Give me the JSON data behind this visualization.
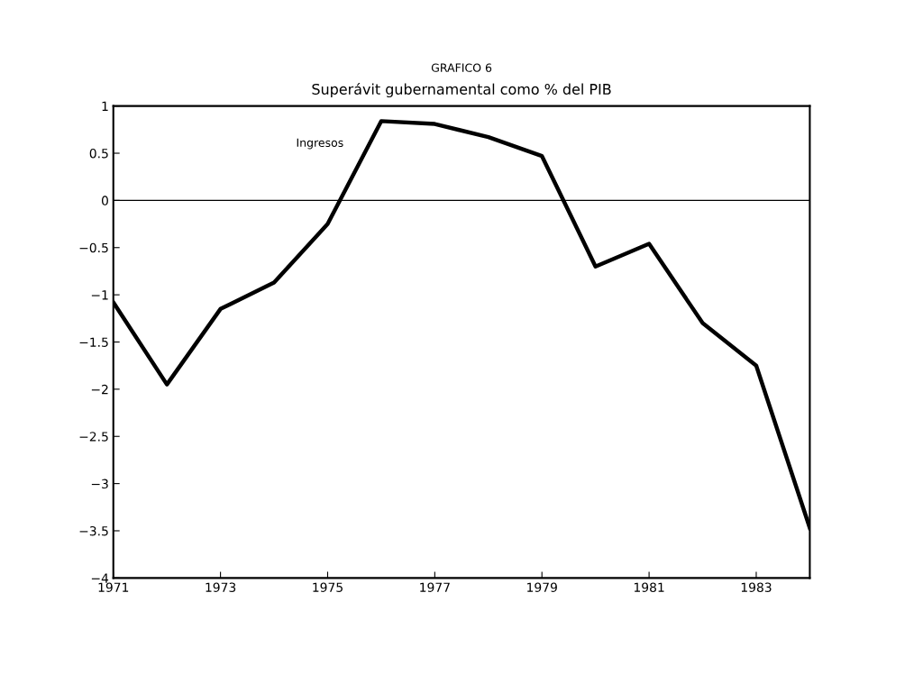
{
  "chart_data": {
    "type": "line",
    "title": "GRAFICO 6",
    "subtitle": "Superávit gubernamental como % del PIB",
    "x": [
      1971,
      1972,
      1973,
      1974,
      1975,
      1976,
      1977,
      1978,
      1979,
      1980,
      1981,
      1982,
      1983,
      1984
    ],
    "series": [
      {
        "name": "Ingresos",
        "color": "#000000",
        "values": [
          -1.08,
          -1.95,
          -1.15,
          -0.87,
          -0.25,
          0.84,
          0.81,
          0.67,
          0.47,
          -0.7,
          -0.46,
          -1.3,
          -1.75,
          -3.47
        ]
      }
    ],
    "xlim": [
      1971,
      1984
    ],
    "xticks": [
      1971,
      1973,
      1975,
      1977,
      1979,
      1981,
      1983
    ],
    "ylim": [
      -4,
      1
    ],
    "yticks": [
      {
        "value": 1,
        "label": "1"
      },
      {
        "value": 0.5,
        "label": "0.5"
      },
      {
        "value": 0,
        "label": "0"
      },
      {
        "value": -0.5,
        "label": "−0.5"
      },
      {
        "value": -1,
        "label": "−1"
      },
      {
        "value": -1.5,
        "label": "−1.5"
      },
      {
        "value": -2,
        "label": "−2"
      },
      {
        "value": -2.5,
        "label": "−2.5"
      },
      {
        "value": -3,
        "label": "−3"
      },
      {
        "value": -3.5,
        "label": "−3.5"
      },
      {
        "value": -4,
        "label": "−4"
      }
    ],
    "ref_lines": [
      {
        "axis": "y",
        "value": 0,
        "color": "#000000"
      }
    ],
    "grid": false,
    "legend": false,
    "marker": "none",
    "line_style": "solid"
  }
}
